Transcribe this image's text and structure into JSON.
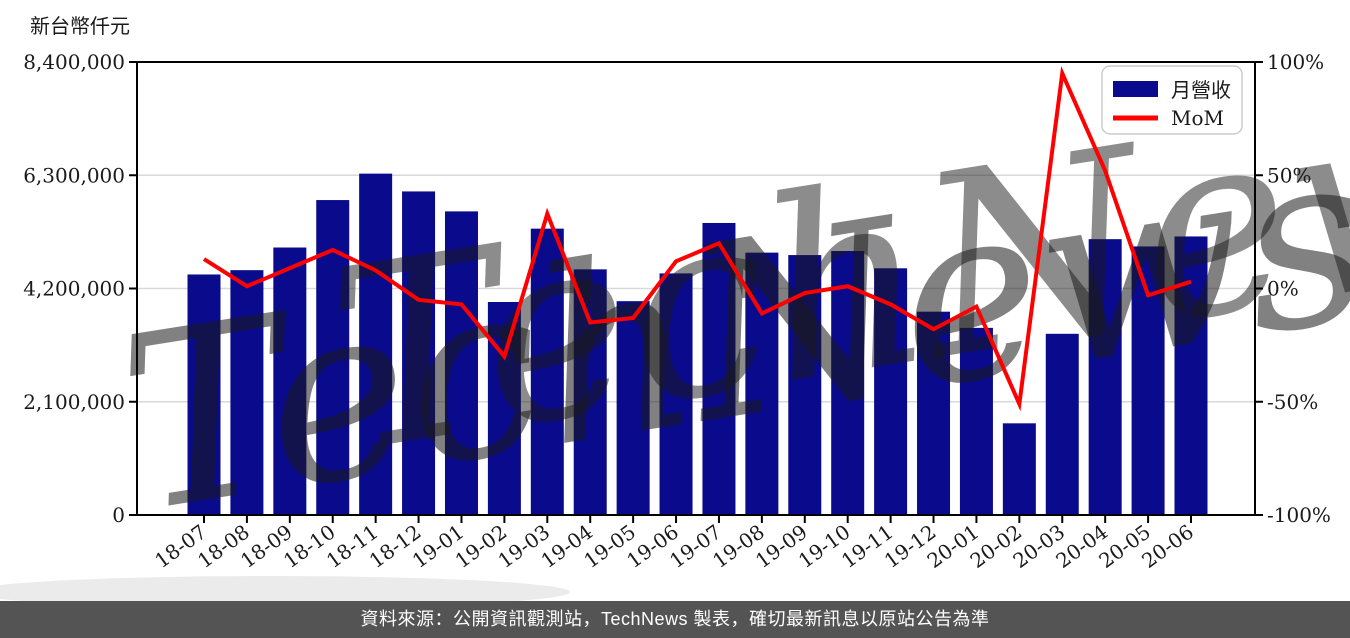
{
  "chart_data": {
    "type": "bar",
    "title": "新台幣仟元",
    "categories": [
      "18-07",
      "18-08",
      "18-09",
      "18-10",
      "18-11",
      "18-12",
      "19-01",
      "19-02",
      "19-03",
      "19-04",
      "19-05",
      "19-06",
      "19-07",
      "19-08",
      "19-09",
      "19-10",
      "19-11",
      "19-12",
      "20-01",
      "20-02",
      "20-03",
      "20-04",
      "20-05",
      "20-06"
    ],
    "series": [
      {
        "name": "月營收",
        "type": "bar",
        "axis": "left",
        "color": "#0a0a8c",
        "values": [
          4460000,
          4540000,
          4960000,
          5840000,
          6330000,
          6000000,
          5630000,
          3950000,
          5310000,
          4555000,
          3965000,
          4480000,
          5415000,
          4865000,
          4820000,
          4895000,
          4575000,
          3770000,
          3470000,
          1700000,
          3360000,
          5115000,
          4980000,
          5165000
        ]
      },
      {
        "name": "MoM",
        "type": "line",
        "axis": "right",
        "color": "#ff0000",
        "unit": "%",
        "values": [
          13,
          1,
          9,
          17,
          8,
          -5,
          -7,
          -30,
          33,
          -15,
          -13,
          12,
          20,
          -11,
          -2,
          1,
          -7,
          -18,
          -8,
          -51,
          95,
          52,
          -3,
          3
        ]
      }
    ],
    "y_axis_left": {
      "label": "新台幣仟元",
      "min": 0,
      "max": 8400000,
      "tick_labels": [
        "0",
        "2,100,000",
        "4,200,000",
        "6,300,000",
        "8,400,000"
      ]
    },
    "y_axis_right": {
      "min": -100,
      "max": 100,
      "tick_labels": [
        "-100%",
        "-50%",
        "0%",
        "50%",
        "100%"
      ]
    },
    "legend": {
      "position": "top-right",
      "entries": [
        "月營收",
        "MoM"
      ]
    },
    "grid": true
  },
  "watermark": {
    "text": "TechNews",
    "pink": "#f0bcc9",
    "gray": "#e3e3e3"
  },
  "footer": {
    "text": "資料來源：公開資訊觀測站，TechNews 製表，確切最新訊息以原站公告為準"
  },
  "colors": {
    "bar": "#0a0a8c",
    "line": "#ff0000",
    "grid": "#d9d9d9",
    "axis": "#000000",
    "footer_bg": "#545454",
    "footer_text": "#ffffff"
  }
}
